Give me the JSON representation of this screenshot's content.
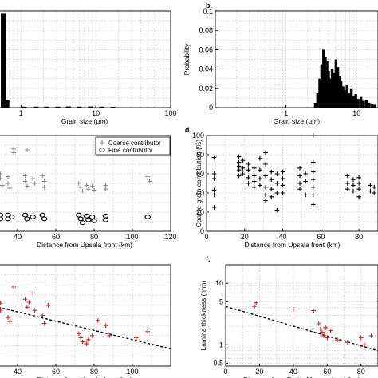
{
  "chart_data": [
    {
      "id": "a",
      "type": "bar",
      "panel_label": "",
      "xlabel": "Grain size (μm)",
      "ylabel": "",
      "xscale": "log",
      "xlim": [
        0.5,
        100
      ],
      "ylim": [
        0,
        1
      ],
      "x_tick_labels": [
        "1",
        "10",
        "100"
      ],
      "grid": true,
      "bins": [
        {
          "x": 0.58,
          "y": 0.98
        },
        {
          "x": 0.65,
          "y": 0.08
        },
        {
          "x": 1.1,
          "y": 0.01
        },
        {
          "x": 1.6,
          "y": 0.01
        },
        {
          "x": 2.2,
          "y": 0.01
        },
        {
          "x": 3.1,
          "y": 0.01
        },
        {
          "x": 4.3,
          "y": 0.012
        },
        {
          "x": 6.0,
          "y": 0.01
        },
        {
          "x": 8.5,
          "y": 0.012
        },
        {
          "x": 12,
          "y": 0.01
        },
        {
          "x": 17,
          "y": 0.008
        }
      ]
    },
    {
      "id": "b",
      "type": "bar",
      "panel_label": "b.",
      "xlabel": "Grain size (μm)",
      "ylabel": "Probability",
      "xscale": "log",
      "xlim": [
        0.1,
        20
      ],
      "ylim": [
        0,
        0.1
      ],
      "y_ticks": [
        0,
        0.02,
        0.04,
        0.06,
        0.08,
        0.1
      ],
      "x_tick_labels": [
        "1",
        "10"
      ],
      "grid": true,
      "bins": [
        {
          "x": 2.6,
          "y": 0.005
        },
        {
          "x": 2.8,
          "y": 0.015
        },
        {
          "x": 3.0,
          "y": 0.03
        },
        {
          "x": 3.2,
          "y": 0.045
        },
        {
          "x": 3.4,
          "y": 0.06
        },
        {
          "x": 3.6,
          "y": 0.052
        },
        {
          "x": 3.8,
          "y": 0.048
        },
        {
          "x": 4.0,
          "y": 0.038
        },
        {
          "x": 4.2,
          "y": 0.03
        },
        {
          "x": 4.5,
          "y": 0.04
        },
        {
          "x": 4.8,
          "y": 0.036
        },
        {
          "x": 5.1,
          "y": 0.05
        },
        {
          "x": 5.4,
          "y": 0.042
        },
        {
          "x": 5.7,
          "y": 0.033
        },
        {
          "x": 6.0,
          "y": 0.028
        },
        {
          "x": 6.4,
          "y": 0.022
        },
        {
          "x": 6.8,
          "y": 0.018
        },
        {
          "x": 7.3,
          "y": 0.024
        },
        {
          "x": 7.8,
          "y": 0.015
        },
        {
          "x": 8.4,
          "y": 0.02
        },
        {
          "x": 9.0,
          "y": 0.012
        },
        {
          "x": 9.7,
          "y": 0.014
        },
        {
          "x": 10.5,
          "y": 0.009
        },
        {
          "x": 11.5,
          "y": 0.011
        },
        {
          "x": 12.5,
          "y": 0.007
        },
        {
          "x": 13.7,
          "y": 0.008
        },
        {
          "x": 15,
          "y": 0.005
        },
        {
          "x": 16.5,
          "y": 0.004
        },
        {
          "x": 18,
          "y": 0.003
        }
      ]
    },
    {
      "id": "c",
      "type": "scatter",
      "panel_label": "",
      "xlabel": "Distance from Upsala front (km)",
      "ylabel": "",
      "xlim": [
        30,
        120
      ],
      "ylim": [
        0,
        100
      ],
      "x_ticks": [
        40,
        60,
        80,
        100,
        120
      ],
      "grid": true,
      "legend": {
        "location": "top-right",
        "entries": [
          {
            "label": "Coarse contributor",
            "marker": "plus",
            "color": "#8c8c8c"
          },
          {
            "label": "Fine contributor",
            "marker": "circle",
            "color": "#000000"
          }
        ]
      },
      "series": [
        {
          "name": "Coarse contributor",
          "marker": "plus",
          "color": "#8c8c8c",
          "points": [
            {
              "x": 31,
              "y": 60
            },
            {
              "x": 31,
              "y": 55
            },
            {
              "x": 32,
              "y": 48
            },
            {
              "x": 35,
              "y": 57
            },
            {
              "x": 35,
              "y": 50
            },
            {
              "x": 36,
              "y": 45
            },
            {
              "x": 38,
              "y": 82
            },
            {
              "x": 38,
              "y": 86
            },
            {
              "x": 44,
              "y": 58
            },
            {
              "x": 44,
              "y": 52
            },
            {
              "x": 45,
              "y": 47
            },
            {
              "x": 45,
              "y": 85
            },
            {
              "x": 48,
              "y": 55
            },
            {
              "x": 49,
              "y": 50
            },
            {
              "x": 53,
              "y": 58
            },
            {
              "x": 54,
              "y": 52
            },
            {
              "x": 54,
              "y": 46
            },
            {
              "x": 72,
              "y": 50
            },
            {
              "x": 73,
              "y": 46
            },
            {
              "x": 74,
              "y": 42
            },
            {
              "x": 76,
              "y": 48
            },
            {
              "x": 77,
              "y": 44
            },
            {
              "x": 79,
              "y": 47
            },
            {
              "x": 80,
              "y": 43
            },
            {
              "x": 82,
              "y": 85
            },
            {
              "x": 86,
              "y": 48
            },
            {
              "x": 86,
              "y": 44
            },
            {
              "x": 108,
              "y": 57
            },
            {
              "x": 109,
              "y": 52
            },
            {
              "x": 108,
              "y": 85
            }
          ]
        },
        {
          "name": "Fine contributor",
          "marker": "circle",
          "color": "#000000",
          "points": [
            {
              "x": 31,
              "y": 17
            },
            {
              "x": 31,
              "y": 13
            },
            {
              "x": 35,
              "y": 17
            },
            {
              "x": 35,
              "y": 13
            },
            {
              "x": 37,
              "y": 15
            },
            {
              "x": 44,
              "y": 17
            },
            {
              "x": 45,
              "y": 13
            },
            {
              "x": 48,
              "y": 15
            },
            {
              "x": 53,
              "y": 17
            },
            {
              "x": 54,
              "y": 13
            },
            {
              "x": 72,
              "y": 17
            },
            {
              "x": 73,
              "y": 13
            },
            {
              "x": 74,
              "y": 9
            },
            {
              "x": 76,
              "y": 16
            },
            {
              "x": 77,
              "y": 12
            },
            {
              "x": 79,
              "y": 15
            },
            {
              "x": 80,
              "y": 11
            },
            {
              "x": 86,
              "y": 16
            },
            {
              "x": 86,
              "y": 12
            },
            {
              "x": 108,
              "y": 15
            }
          ]
        }
      ]
    },
    {
      "id": "d",
      "type": "scatter",
      "panel_label": "d.",
      "xlabel": "Distance from Upsala front (km)",
      "ylabel": "Coarse grain contribution (%)",
      "xlim": [
        0,
        90
      ],
      "ylim": [
        0,
        100
      ],
      "x_ticks": [
        0,
        20,
        40,
        60,
        80
      ],
      "y_ticks": [
        0,
        20,
        40,
        60,
        80,
        100
      ],
      "grid": true,
      "series": [
        {
          "name": "",
          "marker": "plus",
          "color": "#000000",
          "points": [
            {
              "x": 4,
              "y": 77
            },
            {
              "x": 4,
              "y": 60
            },
            {
              "x": 4,
              "y": 55
            },
            {
              "x": 4,
              "y": 43
            },
            {
              "x": 4,
              "y": 38
            },
            {
              "x": 4,
              "y": 25
            },
            {
              "x": 17,
              "y": 78
            },
            {
              "x": 17,
              "y": 72
            },
            {
              "x": 17,
              "y": 68
            },
            {
              "x": 17,
              "y": 64
            },
            {
              "x": 17,
              "y": 58
            },
            {
              "x": 19,
              "y": 74
            },
            {
              "x": 19,
              "y": 66
            },
            {
              "x": 19,
              "y": 60
            },
            {
              "x": 22,
              "y": 70
            },
            {
              "x": 22,
              "y": 64
            },
            {
              "x": 22,
              "y": 56
            },
            {
              "x": 22,
              "y": 50
            },
            {
              "x": 25,
              "y": 66
            },
            {
              "x": 25,
              "y": 58
            },
            {
              "x": 25,
              "y": 52
            },
            {
              "x": 25,
              "y": 46
            },
            {
              "x": 28,
              "y": 76
            },
            {
              "x": 28,
              "y": 64
            },
            {
              "x": 28,
              "y": 55
            },
            {
              "x": 28,
              "y": 48
            },
            {
              "x": 31,
              "y": 82
            },
            {
              "x": 31,
              "y": 70
            },
            {
              "x": 31,
              "y": 58
            },
            {
              "x": 31,
              "y": 46
            },
            {
              "x": 31,
              "y": 38
            },
            {
              "x": 31,
              "y": 32
            },
            {
              "x": 34,
              "y": 62
            },
            {
              "x": 34,
              "y": 54
            },
            {
              "x": 34,
              "y": 44
            },
            {
              "x": 34,
              "y": 36
            },
            {
              "x": 37,
              "y": 60
            },
            {
              "x": 37,
              "y": 50
            },
            {
              "x": 37,
              "y": 40
            },
            {
              "x": 37,
              "y": 22
            },
            {
              "x": 40,
              "y": 62
            },
            {
              "x": 40,
              "y": 55
            },
            {
              "x": 40,
              "y": 48
            },
            {
              "x": 40,
              "y": 40
            },
            {
              "x": 49,
              "y": 66
            },
            {
              "x": 49,
              "y": 58
            },
            {
              "x": 49,
              "y": 50
            },
            {
              "x": 49,
              "y": 44
            },
            {
              "x": 52,
              "y": 60
            },
            {
              "x": 52,
              "y": 52
            },
            {
              "x": 52,
              "y": 38
            },
            {
              "x": 56,
              "y": 100
            },
            {
              "x": 56,
              "y": 72
            },
            {
              "x": 56,
              "y": 62
            },
            {
              "x": 56,
              "y": 54
            },
            {
              "x": 56,
              "y": 46
            },
            {
              "x": 56,
              "y": 38
            },
            {
              "x": 56,
              "y": 28
            },
            {
              "x": 74,
              "y": 58
            },
            {
              "x": 74,
              "y": 50
            },
            {
              "x": 74,
              "y": 44
            },
            {
              "x": 77,
              "y": 54
            },
            {
              "x": 77,
              "y": 48
            },
            {
              "x": 77,
              "y": 42
            },
            {
              "x": 80,
              "y": 56
            },
            {
              "x": 80,
              "y": 50
            },
            {
              "x": 80,
              "y": 44
            },
            {
              "x": 80,
              "y": 36
            },
            {
              "x": 86,
              "y": 48
            },
            {
              "x": 86,
              "y": 42
            },
            {
              "x": 88,
              "y": 46
            },
            {
              "x": 88,
              "y": 40
            }
          ]
        }
      ]
    },
    {
      "id": "e",
      "type": "scatter",
      "panel_label": "",
      "xlabel": "Distance from Upsala front (km)",
      "ylabel": "",
      "xlim": [
        30,
        120
      ],
      "ylim": [
        0,
        1
      ],
      "x_ticks": [
        40,
        60,
        80,
        100
      ],
      "grid": true,
      "trendline": {
        "x": [
          30,
          120
        ],
        "y": [
          0.58,
          0.17
        ],
        "style": "dashed"
      },
      "series": [
        {
          "name": "",
          "marker": "plus",
          "color": "#d42020",
          "points": [
            {
              "x": 31,
              "y": 0.62
            },
            {
              "x": 31,
              "y": 0.55
            },
            {
              "x": 35,
              "y": 0.48
            },
            {
              "x": 36,
              "y": 0.44
            },
            {
              "x": 38,
              "y": 0.78
            },
            {
              "x": 44,
              "y": 0.66
            },
            {
              "x": 45,
              "y": 0.58
            },
            {
              "x": 46,
              "y": 0.63
            },
            {
              "x": 48,
              "y": 0.72
            },
            {
              "x": 49,
              "y": 0.55
            },
            {
              "x": 53,
              "y": 0.5
            },
            {
              "x": 54,
              "y": 0.42
            },
            {
              "x": 56,
              "y": 0.6
            },
            {
              "x": 72,
              "y": 0.32
            },
            {
              "x": 73,
              "y": 0.28
            },
            {
              "x": 74,
              "y": 0.24
            },
            {
              "x": 76,
              "y": 0.22
            },
            {
              "x": 77,
              "y": 0.26
            },
            {
              "x": 79,
              "y": 0.3
            },
            {
              "x": 82,
              "y": 0.45
            },
            {
              "x": 86,
              "y": 0.4
            },
            {
              "x": 88,
              "y": 0.3
            },
            {
              "x": 102,
              "y": 0.28
            },
            {
              "x": 108,
              "y": 0.34
            }
          ]
        }
      ]
    },
    {
      "id": "f",
      "type": "scatter",
      "panel_label": "f.",
      "xlabel": "Distance from Perito Moreno front (km)",
      "ylabel": "Lamina thickness (mm)",
      "yscale": "log",
      "xlim": [
        0,
        90
      ],
      "ylim": [
        0.45,
        20
      ],
      "x_ticks": [
        0,
        20,
        40,
        60,
        80
      ],
      "y_tick_labels": [
        "0.5",
        "1",
        "5",
        "10"
      ],
      "y_tick_values": [
        0.5,
        1,
        5,
        10
      ],
      "grid": true,
      "trendline": {
        "x": [
          0,
          90
        ],
        "y": [
          4.2,
          0.8
        ],
        "style": "dashed"
      },
      "series": [
        {
          "name": "",
          "marker": "plus",
          "color": "#d42020",
          "points": [
            {
              "x": 18,
              "y": 4.8
            },
            {
              "x": 17,
              "y": 4.2
            },
            {
              "x": 40,
              "y": 3.8
            },
            {
              "x": 52,
              "y": 3.6
            },
            {
              "x": 55,
              "y": 2.2
            },
            {
              "x": 56,
              "y": 1.8
            },
            {
              "x": 57,
              "y": 1.6
            },
            {
              "x": 58,
              "y": 1.4
            },
            {
              "x": 59,
              "y": 1.9
            },
            {
              "x": 60,
              "y": 1.3
            },
            {
              "x": 62,
              "y": 1.7
            },
            {
              "x": 66,
              "y": 1.2
            },
            {
              "x": 72,
              "y": 1.1
            },
            {
              "x": 80,
              "y": 1.3
            },
            {
              "x": 82,
              "y": 1.0
            },
            {
              "x": 86,
              "y": 1.4
            }
          ]
        }
      ]
    }
  ]
}
